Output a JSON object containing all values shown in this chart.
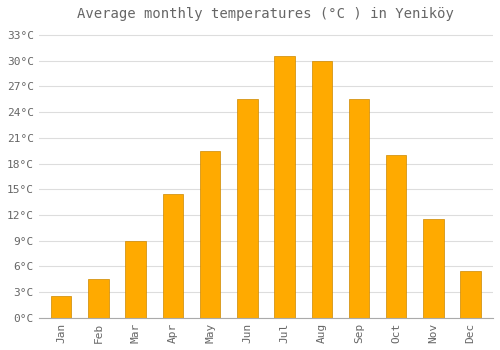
{
  "title": "Average monthly temperatures (°C ) in Yeniköy",
  "months": [
    "Jan",
    "Feb",
    "Mar",
    "Apr",
    "May",
    "Jun",
    "Jul",
    "Aug",
    "Sep",
    "Oct",
    "Nov",
    "Dec"
  ],
  "values": [
    2.5,
    4.5,
    9.0,
    14.5,
    19.5,
    25.5,
    30.5,
    30.0,
    25.5,
    19.0,
    11.5,
    5.5
  ],
  "bar_color": "#FFAA00",
  "bar_edge_color": "#CC8800",
  "background_color": "#FFFFFF",
  "grid_color": "#DDDDDD",
  "text_color": "#666666",
  "ylim": [
    0,
    34
  ],
  "yticks": [
    0,
    3,
    6,
    9,
    12,
    15,
    18,
    21,
    24,
    27,
    30,
    33
  ],
  "title_fontsize": 10,
  "tick_fontsize": 8,
  "bar_width": 0.55
}
